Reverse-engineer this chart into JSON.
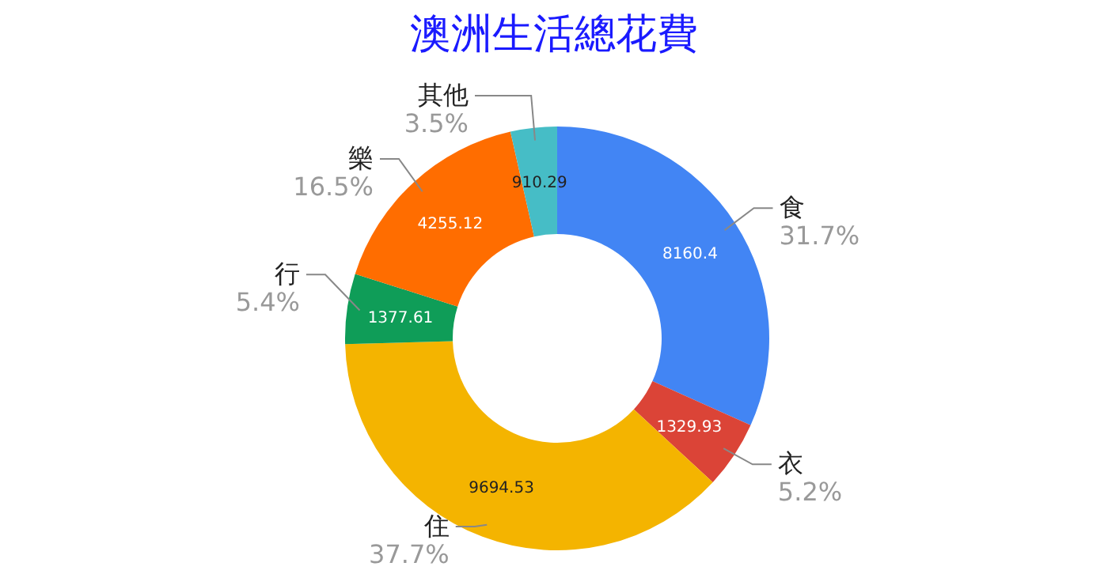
{
  "chart_data": {
    "type": "donut",
    "title": "澳洲生活總花費",
    "categories": [
      "食",
      "衣",
      "住",
      "行",
      "樂",
      "其他"
    ],
    "values": [
      8160.4,
      1329.93,
      9694.53,
      1377.61,
      4255.12,
      910.29
    ],
    "colors": [
      "#4285f4",
      "#db4437",
      "#f4b400",
      "#0f9d58",
      "#ff6d00",
      "#46bdc6"
    ],
    "annotations": [
      "31.7%",
      "5.2%",
      "37.7%",
      "5.4%",
      "16.5%",
      "3.5%"
    ],
    "data_labels": true
  }
}
